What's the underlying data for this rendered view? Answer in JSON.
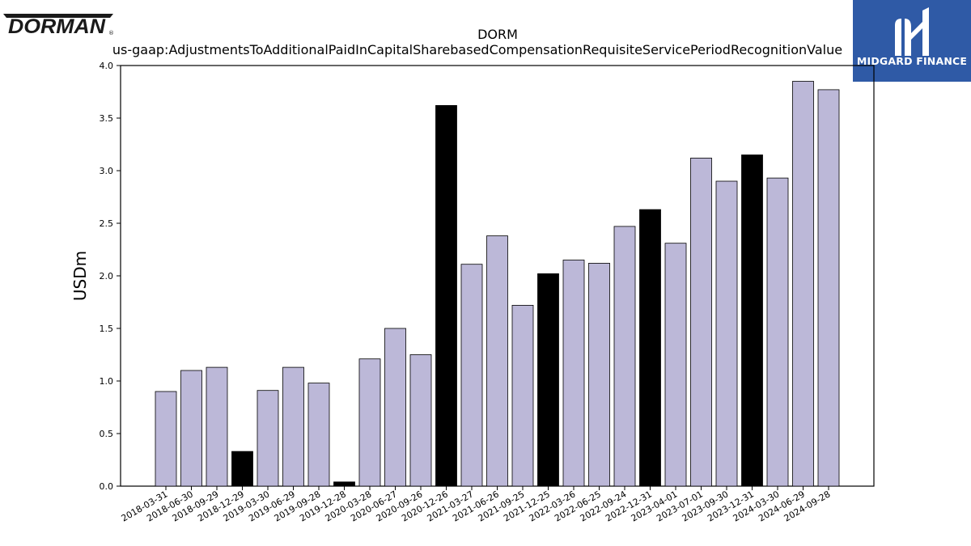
{
  "logos": {
    "left": "DORMAN",
    "right": "MIDGARD FINANCE"
  },
  "colors": {
    "bar_default": "#bcb8d8",
    "bar_highlight": "#000000",
    "bar_edge": "#000000",
    "brand_right": "#2f5aa6"
  },
  "chart_data": {
    "type": "bar",
    "title": "DORM",
    "subtitle": "us-gaap:AdjustmentsToAdditionalPaidInCapitalSharebasedCompensationRequisiteServicePeriodRecognitionValue",
    "xlabel": "",
    "ylabel": "USDm",
    "ylim": [
      0,
      4.0
    ],
    "yticks": [
      "0.0",
      "0.5",
      "1.0",
      "1.5",
      "2.0",
      "2.5",
      "3.0",
      "3.5",
      "4.0"
    ],
    "grid": false,
    "categories": [
      "2018-03-31",
      "2018-06-30",
      "2018-09-29",
      "2018-12-29",
      "2019-03-30",
      "2019-06-29",
      "2019-09-28",
      "2019-12-28",
      "2020-03-28",
      "2020-06-27",
      "2020-09-26",
      "2020-12-26",
      "2021-03-27",
      "2021-06-26",
      "2021-09-25",
      "2021-12-25",
      "2022-03-26",
      "2022-06-25",
      "2022-09-24",
      "2022-12-31",
      "2023-04-01",
      "2023-07-01",
      "2023-09-30",
      "2023-12-31",
      "2024-03-30",
      "2024-06-29",
      "2024-09-28"
    ],
    "values": [
      0.9,
      1.1,
      1.13,
      0.33,
      0.91,
      1.13,
      0.98,
      0.04,
      1.21,
      1.5,
      1.25,
      3.62,
      2.11,
      2.38,
      1.72,
      2.02,
      2.15,
      2.12,
      2.47,
      2.63,
      2.31,
      3.12,
      2.9,
      3.15,
      2.93,
      3.85,
      3.77
    ],
    "highlight_categories": [
      "2018-12-29",
      "2019-12-28",
      "2020-12-26",
      "2021-12-25",
      "2022-12-31",
      "2023-12-31"
    ]
  }
}
